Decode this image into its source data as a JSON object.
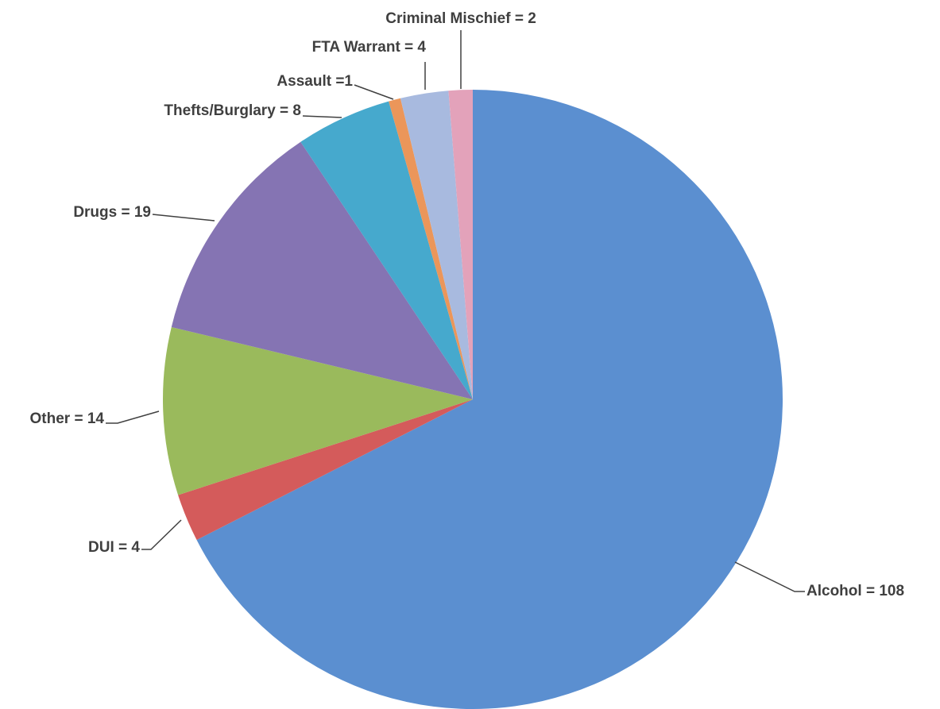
{
  "chart_data": {
    "type": "pie",
    "categories": [
      "Alcohol  = 108",
      "DUI = 4",
      "Other = 14",
      "Drugs = 19",
      "Thefts/Burglary = 8",
      "Assault =1",
      "FTA Warrant = 4",
      "Criminal Mischief = 2"
    ],
    "values": [
      108,
      4,
      14,
      19,
      8,
      1,
      4,
      2
    ],
    "colors": [
      "#5b8fd0",
      "#d45b5b",
      "#9aba5c",
      "#8574b3",
      "#46a9cd",
      "#eb965a",
      "#a8badf",
      "#e3a2ba"
    ]
  }
}
